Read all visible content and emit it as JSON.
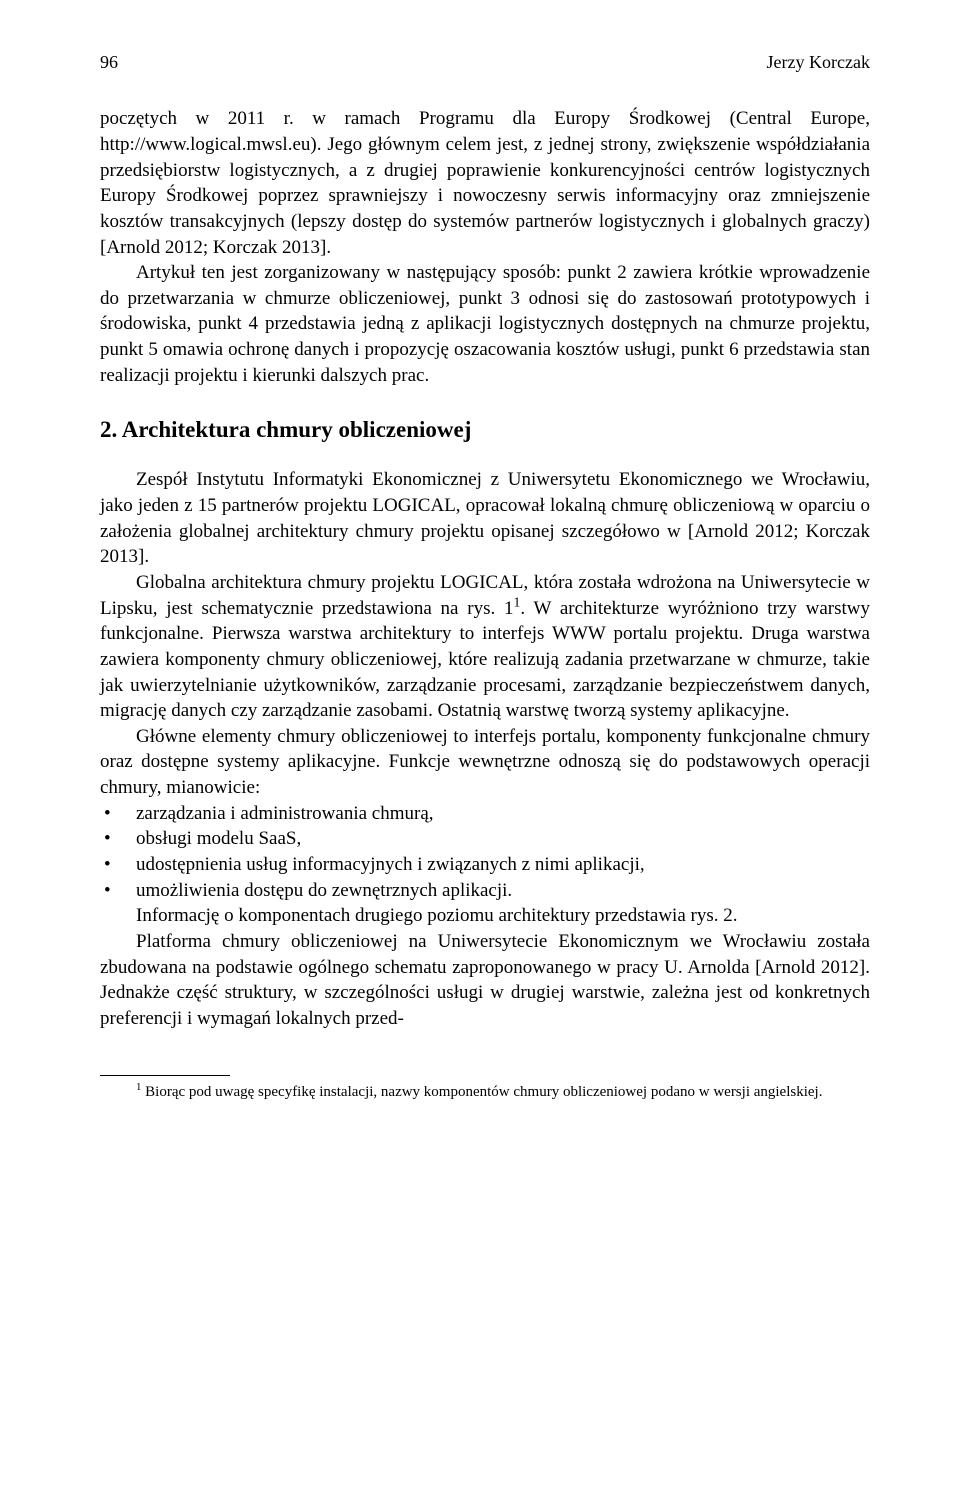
{
  "header": {
    "page_number": "96",
    "author": "Jerzy Korczak"
  },
  "body": {
    "p1": "poczętych w 2011 r. w ramach Programu dla Europy Środkowej (Central Europe, http://www.logical.mwsl.eu). Jego głównym celem jest, z jednej strony, zwiększenie współdziałania przedsiębiorstw logistycznych, a z drugiej poprawienie konkurencyjności centrów logistycznych Europy Środkowej poprzez sprawniejszy i nowoczesny serwis informacyjny oraz zmniejszenie kosztów transakcyjnych (lepszy dostęp do systemów partnerów logistycznych i globalnych graczy) [Arnold 2012; Korczak 2013].",
    "p2": "Artykuł ten jest zorganizowany w następujący sposób: punkt 2 zawiera krótkie wprowadzenie do przetwarzania w chmurze obliczeniowej, punkt 3 odnosi się do zastosowań prototypowych i środowiska, punkt 4 przedstawia jedną z aplikacji logistycznych dostępnych na chmurze projektu, punkt 5 omawia ochronę danych i propozycję oszacowania kosztów usługi, punkt 6 przedstawia stan realizacji projektu i kierunki dalszych prac.",
    "section_heading": "2. Architektura chmury obliczeniowej",
    "p3": "Zespół Instytutu Informatyki Ekonomicznej z Uniwersytetu Ekonomicznego we Wrocławiu, jako jeden z 15 partnerów projektu LOGICAL, opracował lokalną chmurę obliczeniową w oparciu o założenia globalnej architektury chmury projektu opisanej szczegółowo w [Arnold 2012; Korczak 2013].",
    "p4_a": "Globalna architektura chmury projektu LOGICAL, która została wdrożona na Uniwersytecie w Lipsku, jest schematycznie przedstawiona na rys. 1",
    "p4_b": ". W architekturze wyróżniono trzy warstwy funkcjonalne. Pierwsza warstwa architektury to interfejs WWW portalu projektu. Druga warstwa zawiera komponenty chmury obliczeniowej, które realizują zadania przetwarzane w chmurze, takie jak uwierzytelnianie użytkowników, zarządzanie procesami, zarządzanie bezpieczeństwem danych, migrację danych czy zarządzanie zasobami. Ostatnią warstwę tworzą systemy aplikacyjne.",
    "p5": "Główne elementy chmury obliczeniowej to interfejs portalu, komponenty funkcjonalne chmury oraz dostępne systemy aplikacyjne. Funkcje wewnętrzne odnoszą się do podstawowych operacji chmury, mianowicie:",
    "bullets": [
      "zarządzania i administrowania chmurą,",
      "obsługi modelu SaaS,",
      "udostępnienia usług informacyjnych i związanych z nimi aplikacji,",
      "umożliwienia dostępu do zewnętrznych aplikacji."
    ],
    "p6": "Informację o komponentach drugiego poziomu architektury przedstawia rys. 2.",
    "p7": "Platforma chmury obliczeniowej na Uniwersytecie Ekonomicznym we Wrocławiu została zbudowana na podstawie ogólnego schematu zaproponowanego w pracy U. Arnolda [Arnold 2012]. Jednakże część struktury, w szczególności usługi w drugiej warstwie, zależna jest od konkretnych preferencji i wymagań lokalnych przed-"
  },
  "footnote": {
    "marker": "1",
    "text": " Biorąc pod uwagę specyfikę instalacji, nazwy komponentów chmury obliczeniowej podano w wersji angielskiej."
  }
}
